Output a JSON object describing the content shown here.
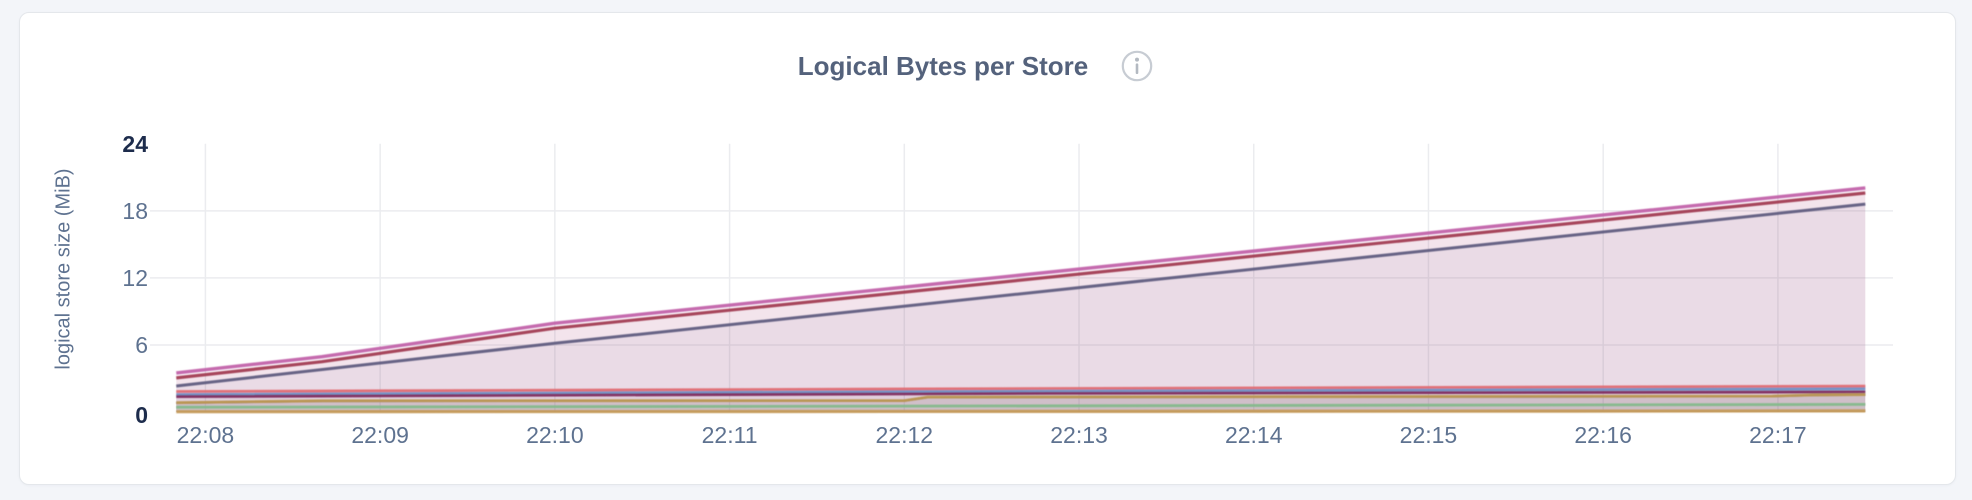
{
  "page": {
    "background_color": "#f3f5f9",
    "card_background_color": "#ffffff",
    "card_border_color": "#e7e9ed"
  },
  "header": {
    "title": "Logical Bytes per Store",
    "info_icon": "info-circle"
  },
  "chart_data": {
    "type": "area",
    "title": "Logical Bytes per Store",
    "ylabel": "logical store size (MiB)",
    "xlabel": "",
    "ylim": [
      0,
      24
    ],
    "x_domain": [
      "22:07:41",
      "22:17:40"
    ],
    "data_start": "22:07:50",
    "data_end": "22:17:30",
    "grid": true,
    "legend": "none",
    "x_ticks": [
      "22:08",
      "22:09",
      "22:10",
      "22:11",
      "22:12",
      "22:13",
      "22:14",
      "22:15",
      "22:16",
      "22:17"
    ],
    "y_ticks": [
      {
        "label": "0",
        "value": 0,
        "bold": true
      },
      {
        "label": "6",
        "value": 6,
        "bold": false
      },
      {
        "label": "12",
        "value": 12,
        "bold": false
      },
      {
        "label": "18",
        "value": 18,
        "bold": false
      },
      {
        "label": "24",
        "value": 24,
        "bold": true
      }
    ],
    "gridline_color": "#ebecef",
    "series": [
      {
        "id": "s1",
        "color": "#c263aa",
        "width": 3.4,
        "fill_opacity": 0.075,
        "points": [
          [
            "22:07:50",
            3.5
          ],
          [
            "22:08:40",
            4.95
          ],
          [
            "22:10:00",
            7.95
          ],
          [
            "22:17:30",
            20.05
          ]
        ]
      },
      {
        "id": "s2",
        "color": "#a23c53",
        "width": 3.2,
        "fill_opacity": 0.075,
        "points": [
          [
            "22:07:50",
            3.05
          ],
          [
            "22:08:40",
            4.5
          ],
          [
            "22:10:00",
            7.5
          ],
          [
            "22:17:30",
            19.6
          ]
        ]
      },
      {
        "id": "s3",
        "color": "#5f5c80",
        "width": 3.0,
        "fill_opacity": 0.06,
        "points": [
          [
            "22:07:50",
            2.33
          ],
          [
            "22:10:00",
            6.15
          ],
          [
            "22:17:30",
            18.6
          ]
        ]
      },
      {
        "id": "s4",
        "color": "#e06c72",
        "width": 2.8,
        "fill_opacity": 0.03,
        "points": [
          [
            "22:07:50",
            1.83
          ],
          [
            "22:12:50",
            2.1
          ],
          [
            "22:17:30",
            2.32
          ]
        ]
      },
      {
        "id": "s5",
        "color": "#7090c5",
        "width": 2.8,
        "fill_opacity": 0.03,
        "points": [
          [
            "22:07:50",
            1.57
          ],
          [
            "22:12:50",
            1.87
          ],
          [
            "22:17:30",
            2.08
          ]
        ]
      },
      {
        "id": "s6",
        "color": "#7e2c5f",
        "width": 2.8,
        "fill_opacity": 0.03,
        "points": [
          [
            "22:07:50",
            1.38
          ],
          [
            "22:12:50",
            1.66
          ],
          [
            "22:17:30",
            1.8
          ]
        ]
      },
      {
        "id": "s7",
        "color": "#5f5c80",
        "width": 2.4,
        "fill_opacity": 0.11,
        "points": [
          [
            "22:07:50",
            0.82
          ],
          [
            "22:08:40",
            0.99
          ],
          [
            "22:12:00",
            1.01
          ],
          [
            "22:12:08",
            1.32
          ],
          [
            "22:16:58",
            1.41
          ],
          [
            "22:17:12",
            1.51
          ],
          [
            "22:17:30",
            1.55
          ]
        ]
      },
      {
        "id": "s8",
        "color": "#c09a52",
        "width": 2.8,
        "fill_opacity": 0.06,
        "points": [
          [
            "22:07:50",
            0.83
          ],
          [
            "22:08:40",
            1.0
          ],
          [
            "22:12:00",
            1.02
          ],
          [
            "22:12:08",
            1.33
          ],
          [
            "22:16:58",
            1.42
          ],
          [
            "22:17:12",
            1.52
          ],
          [
            "22:17:30",
            1.56
          ]
        ]
      },
      {
        "id": "s9",
        "color": "#84b98b",
        "width": 2.8,
        "fill_opacity": 0.05,
        "points": [
          [
            "22:07:50",
            0.43
          ],
          [
            "22:11:10",
            0.5
          ],
          [
            "22:14:30",
            0.6
          ],
          [
            "22:17:30",
            0.68
          ]
        ]
      },
      {
        "id": "s10",
        "color": "#c49a58",
        "width": 3.2,
        "fill_opacity": 0.08,
        "points": [
          [
            "22:07:50",
            0.03
          ],
          [
            "22:12:50",
            0.05
          ],
          [
            "22:15:50",
            0.08
          ],
          [
            "22:17:30",
            0.1
          ]
        ]
      }
    ]
  }
}
